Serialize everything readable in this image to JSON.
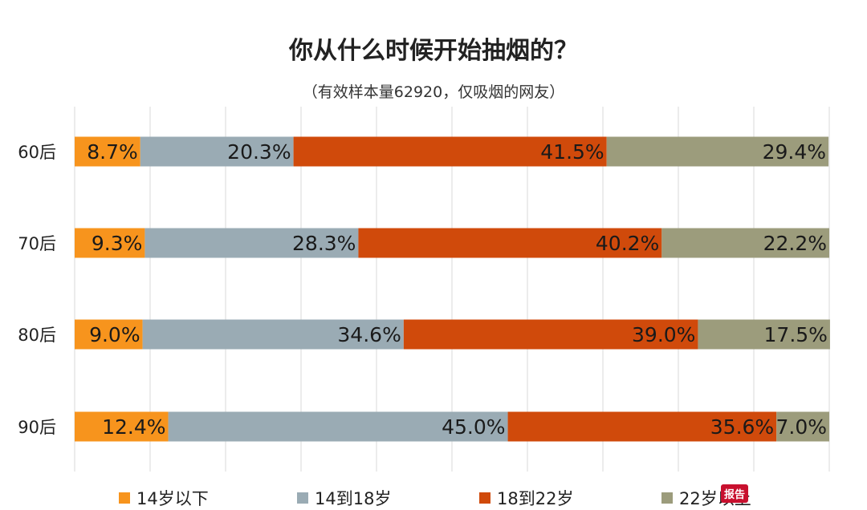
{
  "chart_data": {
    "type": "bar",
    "orientation": "horizontal",
    "stacked": true,
    "title": "你从什么时候开始抽烟的？",
    "subtitle": "（有效样本量62920，仅吸烟的网友）",
    "categories": [
      "60后",
      "70后",
      "80后",
      "90后"
    ],
    "series": [
      {
        "name": "14岁以下",
        "color": "#f7941d",
        "values": [
          8.7,
          9.3,
          9.0,
          12.4
        ],
        "labels": [
          "8.7%",
          "9.3%",
          "9.0%",
          "12.4%"
        ]
      },
      {
        "name": "14到18岁",
        "color": "#9aabb4",
        "values": [
          20.3,
          28.3,
          34.6,
          45.0
        ],
        "labels": [
          "20.3%",
          "28.3%",
          "34.6%",
          "45.0%"
        ]
      },
      {
        "name": "18到22岁",
        "color": "#d04a0b",
        "values": [
          41.5,
          40.2,
          39.0,
          35.6
        ],
        "labels": [
          "41.5%",
          "40.2%",
          "39.0%",
          "35.6%"
        ]
      },
      {
        "name": "22岁以上",
        "color": "#9c9c7c",
        "values": [
          29.4,
          22.2,
          17.5,
          7.0
        ],
        "labels": [
          "29.4%",
          "22.2%",
          "17.5%",
          "7.0%"
        ]
      }
    ],
    "xlim": [
      0,
      100
    ],
    "grid": true,
    "legend": "bottom",
    "watermark": "报告"
  }
}
